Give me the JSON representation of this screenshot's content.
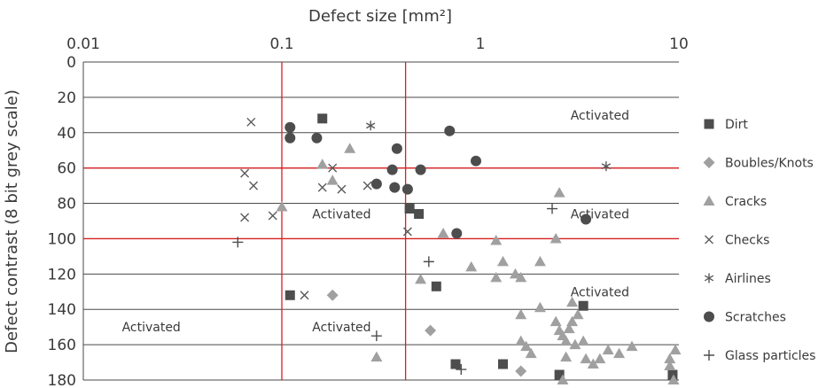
{
  "chart_data": {
    "type": "scatter",
    "xlabel": "Defect size [mm²]",
    "ylabel": "Defect contrast (8 bit grey scale)",
    "x_scale": "log",
    "xlim": [
      0.01,
      10
    ],
    "ylim": [
      0,
      180
    ],
    "y_inverted": true,
    "x_ticks": [
      "0.01",
      "0.1",
      "1",
      "10"
    ],
    "y_ticks": [
      "0",
      "20",
      "40",
      "60",
      "80",
      "100",
      "120",
      "140",
      "160",
      "180"
    ],
    "grid": "horizontal",
    "legend_position": "right",
    "threshold_lines": {
      "x": [
        0.1,
        0.42
      ],
      "y": [
        60,
        100
      ],
      "color": "#d62020"
    },
    "annotations": [
      {
        "text": "Activated",
        "x": 4.0,
        "y": 30
      },
      {
        "text": "Activated",
        "x": 4.0,
        "y": 86
      },
      {
        "text": "Activated",
        "x": 4.0,
        "y": 130
      },
      {
        "text": "Activated",
        "x": 0.2,
        "y": 86
      },
      {
        "text": "Activated",
        "x": 0.2,
        "y": 150
      },
      {
        "text": "Activated",
        "x": 0.022,
        "y": 150
      }
    ],
    "series": [
      {
        "name": "Dirt",
        "marker": "square",
        "color": "#4d4d4d",
        "points": [
          [
            0.16,
            32
          ],
          [
            0.44,
            83
          ],
          [
            0.49,
            86
          ],
          [
            0.11,
            132
          ],
          [
            0.6,
            127
          ],
          [
            0.75,
            171
          ],
          [
            1.3,
            171
          ],
          [
            2.5,
            177
          ],
          [
            3.3,
            138
          ],
          [
            9.3,
            177
          ]
        ]
      },
      {
        "name": "Boubles/Knots",
        "marker": "diamond",
        "color": "#a0a0a0",
        "points": [
          [
            0.18,
            132
          ],
          [
            0.56,
            152
          ],
          [
            1.6,
            175
          ]
        ]
      },
      {
        "name": "Cracks",
        "marker": "triangle",
        "color": "#a0a0a0",
        "points": [
          [
            0.16,
            58
          ],
          [
            0.22,
            49
          ],
          [
            0.18,
            67
          ],
          [
            0.1,
            82
          ],
          [
            0.3,
            167
          ],
          [
            0.5,
            123
          ],
          [
            0.65,
            97
          ],
          [
            0.9,
            116
          ],
          [
            1.2,
            101
          ],
          [
            1.2,
            122
          ],
          [
            1.3,
            113
          ],
          [
            1.5,
            120
          ],
          [
            1.6,
            122
          ],
          [
            1.6,
            143
          ],
          [
            1.6,
            158
          ],
          [
            1.8,
            165
          ],
          [
            2.0,
            139
          ],
          [
            2.0,
            113
          ],
          [
            2.4,
            100
          ],
          [
            2.4,
            147
          ],
          [
            2.5,
            74
          ],
          [
            2.5,
            152
          ],
          [
            2.6,
            155
          ],
          [
            2.7,
            167
          ],
          [
            2.7,
            158
          ],
          [
            2.8,
            151
          ],
          [
            2.9,
            136
          ],
          [
            2.9,
            147
          ],
          [
            3.0,
            160
          ],
          [
            3.1,
            143
          ],
          [
            3.3,
            158
          ],
          [
            3.4,
            168
          ],
          [
            3.7,
            171
          ],
          [
            4.0,
            168
          ],
          [
            4.4,
            163
          ],
          [
            5.0,
            165
          ],
          [
            5.8,
            161
          ],
          [
            9.0,
            168
          ],
          [
            9.0,
            172
          ],
          [
            9.6,
            163
          ],
          [
            9.4,
            180
          ],
          [
            2.6,
            180
          ],
          [
            1.7,
            161
          ]
        ]
      },
      {
        "name": "Checks",
        "marker": "x",
        "color": "#5a5a5a",
        "points": [
          [
            0.07,
            34
          ],
          [
            0.065,
            63
          ],
          [
            0.072,
            70
          ],
          [
            0.065,
            88
          ],
          [
            0.09,
            87
          ],
          [
            0.16,
            71
          ],
          [
            0.18,
            60
          ],
          [
            0.2,
            72
          ],
          [
            0.27,
            70
          ],
          [
            0.13,
            132
          ],
          [
            0.43,
            96
          ]
        ]
      },
      {
        "name": "Airlines",
        "marker": "asterisk",
        "color": "#5a5a5a",
        "points": [
          [
            0.28,
            36
          ],
          [
            4.3,
            59
          ]
        ]
      },
      {
        "name": "Scratches",
        "marker": "circle",
        "color": "#4d4d4d",
        "points": [
          [
            0.11,
            37
          ],
          [
            0.11,
            43
          ],
          [
            0.15,
            43
          ],
          [
            0.36,
            61
          ],
          [
            0.37,
            71
          ],
          [
            0.3,
            69
          ],
          [
            0.38,
            49
          ],
          [
            0.43,
            72
          ],
          [
            0.5,
            61
          ],
          [
            0.7,
            39
          ],
          [
            0.95,
            56
          ],
          [
            0.76,
            97
          ],
          [
            3.4,
            89
          ]
        ]
      },
      {
        "name": "Glass particles",
        "marker": "plus",
        "color": "#4d4d4d",
        "points": [
          [
            0.06,
            102
          ],
          [
            0.3,
            155
          ],
          [
            0.55,
            113
          ],
          [
            2.3,
            83
          ],
          [
            0.8,
            174
          ]
        ]
      }
    ]
  }
}
